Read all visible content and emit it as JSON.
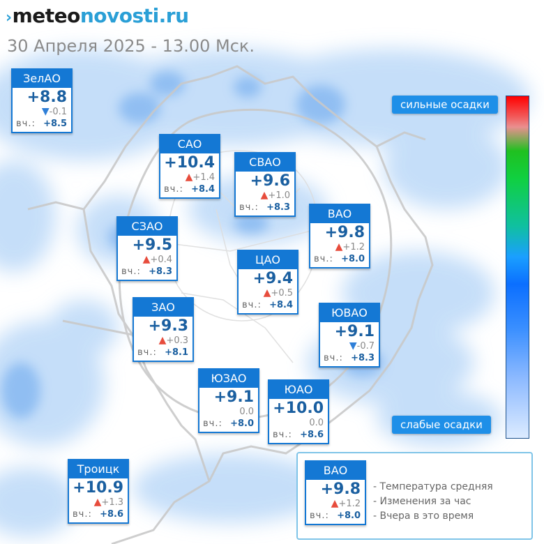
{
  "header": {
    "logo_part1": "meteo",
    "logo_part2": "novosti.ru",
    "logo_mark": "›",
    "datetime": "30 Апреля 2025 - 13.00 Мск."
  },
  "districts": [
    {
      "name": "ЗелАО",
      "temp": "+8.8",
      "dir": "down",
      "change": "-0.1",
      "yest_label": "вч.:",
      "yest": "+8.5"
    },
    {
      "name": "САО",
      "temp": "+10.4",
      "dir": "up",
      "change": "+1.4",
      "yest_label": "вч.:",
      "yest": "+8.4"
    },
    {
      "name": "СВАО",
      "temp": "+9.6",
      "dir": "up",
      "change": "+1.0",
      "yest_label": "вч.:",
      "yest": "+8.3"
    },
    {
      "name": "ВАО",
      "temp": "+9.8",
      "dir": "up",
      "change": "+1.2",
      "yest_label": "вч.:",
      "yest": "+8.0"
    },
    {
      "name": "СЗАО",
      "temp": "+9.5",
      "dir": "up",
      "change": "+0.4",
      "yest_label": "вч.:",
      "yest": "+8.3"
    },
    {
      "name": "ЦАО",
      "temp": "+9.4",
      "dir": "up",
      "change": "+0.5",
      "yest_label": "вч.:",
      "yest": "+8.4"
    },
    {
      "name": "ЗАО",
      "temp": "+9.3",
      "dir": "up",
      "change": "+0.3",
      "yest_label": "вч.:",
      "yest": "+8.1"
    },
    {
      "name": "ЮВАО",
      "temp": "+9.1",
      "dir": "down",
      "change": "-0.7",
      "yest_label": "вч.:",
      "yest": "+8.3"
    },
    {
      "name": "ЮЗАО",
      "temp": "+9.1",
      "dir": "none",
      "change": "0.0",
      "yest_label": "вч.:",
      "yest": "+8.0"
    },
    {
      "name": "ЮАО",
      "temp": "+10.0",
      "dir": "none",
      "change": "0.0",
      "yest_label": "вч.:",
      "yest": "+8.6"
    },
    {
      "name": "Троицк",
      "temp": "+10.9",
      "dir": "up",
      "change": "+1.3",
      "yest_label": "вч.:",
      "yest": "+8.6"
    }
  ],
  "scale": {
    "top_label": "сильные осадки",
    "bottom_label": "слабые осадки"
  },
  "legend": {
    "example": {
      "name": "ВАО",
      "temp": "+9.8",
      "dir": "up",
      "change": "+1.2",
      "yest_label": "вч.:",
      "yest": "+8.0"
    },
    "line1": "- Температура средняя",
    "line2": "- Изменения за час",
    "line3": "- Вчера в это время"
  },
  "icons": {
    "up": "triangle-up",
    "down": "triangle-down"
  },
  "colors": {
    "district_blue": "#1478d4",
    "precip_light": "#cfe4fb",
    "precip_heavy": "#3d8ee0",
    "label_blue": "#1e8fe8"
  }
}
